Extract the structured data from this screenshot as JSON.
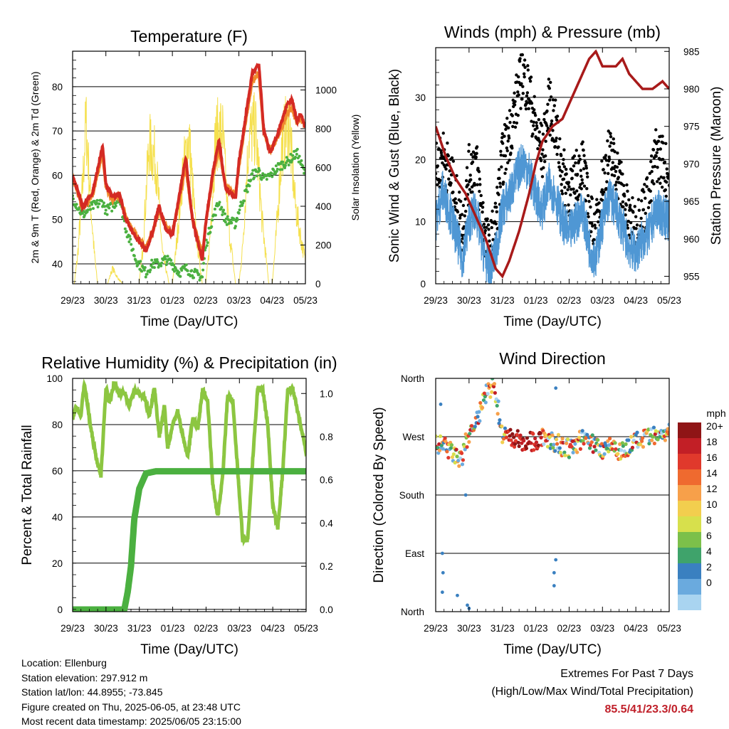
{
  "footer": {
    "location": "Location: Ellenburg",
    "elevation": "Station elevation: 297.912 m",
    "latlon": "Station lat/lon: 44.8955; -73.845",
    "created": "Figure created on Thu, 2025-06-05, at 23:48 UTC",
    "recent": "Most recent data timestamp: 2025/06/05 23:15:00"
  },
  "extremes": {
    "title": "Extremes For Past 7 Days",
    "subtitle": "(High/Low/Max Wind/Total Precipitation)",
    "values": "85.5/41/23.3/0.64"
  },
  "x_ticks": [
    "29/23",
    "30/23",
    "31/23",
    "01/23",
    "02/23",
    "03/23",
    "04/23",
    "05/23"
  ],
  "chart_data": [
    {
      "type": "line",
      "title": "Temperature (F)",
      "xlabel": "Time (Day/UTC)",
      "ylabel": "2m & 9m T (Red, Orange) & 2m Td (Green)",
      "y2label": "Solar Insolation (Yellow)",
      "ylim": [
        35.5,
        88
      ],
      "yticks": [
        40,
        50,
        60,
        70,
        80
      ],
      "y2lim": [
        0,
        1200
      ],
      "y2ticks": [
        0,
        200,
        400,
        600,
        800,
        1000
      ],
      "grid": "horizontal",
      "colors": {
        "t2m": "#d42a24",
        "t9m": "#f08a2c",
        "td2m": "#4bb040",
        "solar": "#f5e04e"
      },
      "series": [
        {
          "name": "2m T",
          "x": [
            0,
            0.3,
            0.6,
            0.9,
            1.0,
            1.2,
            1.4,
            1.6,
            1.9,
            2.2,
            2.4,
            2.6,
            2.8,
            3.0,
            3.2,
            3.4,
            3.6,
            3.9,
            4.0,
            4.2,
            4.4,
            4.6,
            4.9,
            5.0,
            5.2,
            5.4,
            5.6,
            5.75,
            5.95,
            6.2,
            6.45,
            6.6,
            6.75,
            6.85,
            7.0
          ],
          "y": [
            60,
            53,
            56,
            66.5,
            58,
            55,
            56,
            50,
            46,
            43,
            47,
            53,
            48,
            46.5,
            55,
            64,
            50,
            41,
            49,
            60,
            68,
            57,
            55,
            63,
            73,
            83,
            85,
            70,
            65,
            70,
            76,
            77,
            72,
            74,
            71
          ]
        },
        {
          "name": "9m T",
          "x": [
            0,
            0.3,
            0.6,
            0.9,
            1.0,
            1.2,
            1.4,
            1.6,
            1.9,
            2.2,
            2.4,
            2.6,
            2.8,
            3.0,
            3.2,
            3.4,
            3.6,
            3.9,
            4.0,
            4.2,
            4.4,
            4.6,
            4.9,
            5.0,
            5.2,
            5.4,
            5.6,
            5.75,
            5.95,
            6.2,
            6.45,
            6.6,
            6.75,
            6.85,
            7.0
          ],
          "y": [
            59.5,
            52.5,
            55.5,
            65,
            57.5,
            54.5,
            55.5,
            50.5,
            46.5,
            43.5,
            47,
            52,
            48.5,
            47,
            54,
            62,
            50.5,
            42,
            49,
            59,
            66,
            57.5,
            55.5,
            62,
            72,
            81,
            83,
            69.5,
            65.5,
            69,
            74,
            75,
            71.5,
            73,
            71
          ]
        },
        {
          "name": "2m Td",
          "x": [
            0,
            0.3,
            0.6,
            0.9,
            1.0,
            1.2,
            1.4,
            1.6,
            1.9,
            2.2,
            2.4,
            2.6,
            2.8,
            3.0,
            3.2,
            3.4,
            3.6,
            3.9,
            4.0,
            4.2,
            4.4,
            4.6,
            4.9,
            5.0,
            5.2,
            5.4,
            5.6,
            5.75,
            5.95,
            6.2,
            6.45,
            6.6,
            6.75,
            6.85,
            7.0
          ],
          "y": [
            55,
            51,
            53,
            54,
            52,
            53,
            55,
            48,
            41,
            38,
            40,
            40,
            41,
            40,
            38,
            39,
            38,
            37,
            44,
            50,
            54,
            50,
            49,
            52,
            56,
            60,
            61,
            59,
            60,
            62,
            63,
            64,
            65,
            63,
            60
          ]
        },
        {
          "name": "Solar",
          "x": [
            0,
            0.05,
            0.15,
            0.3,
            0.4,
            0.55,
            0.65,
            0.75,
            0.85,
            0.95,
            1.05,
            1.2,
            1.35,
            1.5,
            1.65,
            1.8,
            1.95,
            2.0,
            2.1,
            2.3,
            2.5,
            2.7,
            2.9,
            3.0,
            3.1,
            3.3,
            3.5,
            3.7,
            3.9,
            4.0,
            4.1,
            4.3,
            4.5,
            4.7,
            4.9,
            5.0,
            5.1,
            5.3,
            5.5,
            5.7,
            5.9,
            6.0,
            6.1,
            6.3,
            6.5,
            6.7,
            6.9,
            7.0
          ],
          "y": [
            0,
            0,
            180,
            620,
            1050,
            500,
            200,
            0,
            0,
            0,
            0,
            100,
            40,
            0,
            0,
            0,
            0,
            0,
            200,
            900,
            800,
            200,
            0,
            0,
            200,
            700,
            950,
            350,
            0,
            0,
            200,
            950,
            1000,
            350,
            0,
            0,
            200,
            950,
            1000,
            400,
            0,
            0,
            250,
            900,
            1050,
            500,
            250,
            150
          ]
        }
      ]
    },
    {
      "type": "line",
      "title": "Winds (mph) & Pressure (mb)",
      "xlabel": "Time (Day/UTC)",
      "ylabel": "Sonic Wind & Gust (Blue, Black)",
      "y2label": "Station Pressure (Maroon)",
      "ylim": [
        0,
        38
      ],
      "yticks": [
        0,
        10,
        20,
        30
      ],
      "y2lim": [
        954,
        985.5
      ],
      "y2ticks": [
        955,
        960,
        965,
        970,
        975,
        980,
        985
      ],
      "grid": "horizontal",
      "colors": {
        "wind": "#4f97d4",
        "gust": "#000000",
        "pressure": "#a81a1a"
      },
      "series": [
        {
          "name": "Sonic Wind",
          "x": [
            0,
            0.2,
            0.4,
            0.6,
            0.8,
            1.0,
            1.2,
            1.4,
            1.6,
            1.8,
            2.0,
            2.2,
            2.4,
            2.6,
            2.8,
            3.0,
            3.2,
            3.4,
            3.6,
            3.8,
            4.0,
            4.2,
            4.4,
            4.6,
            4.8,
            5.0,
            5.2,
            5.4,
            5.6,
            5.8,
            6.0,
            6.2,
            6.4,
            6.6,
            6.8,
            7.0
          ],
          "y": [
            10,
            15,
            12,
            8,
            4,
            10,
            12,
            6,
            2,
            5,
            12,
            14,
            17,
            20,
            18,
            14,
            12,
            16,
            14,
            10,
            8,
            10,
            12,
            6,
            4,
            10,
            14,
            12,
            9,
            6,
            5,
            7,
            8,
            12,
            11,
            10
          ]
        },
        {
          "name": "Gust",
          "x": [
            0,
            0.2,
            0.4,
            0.6,
            0.8,
            1.0,
            1.2,
            1.4,
            1.6,
            1.8,
            2.0,
            2.2,
            2.4,
            2.6,
            2.8,
            3.0,
            3.2,
            3.4,
            3.6,
            3.8,
            4.0,
            4.2,
            4.4,
            4.6,
            4.8,
            5.0,
            5.2,
            5.4,
            5.6,
            5.8,
            6.0,
            6.2,
            6.4,
            6.6,
            6.8,
            7.0
          ],
          "y": [
            17,
            20,
            17,
            13,
            8,
            17,
            19,
            10,
            4,
            9,
            19,
            23,
            28,
            33,
            30,
            24,
            20,
            28,
            24,
            17,
            14,
            16,
            19,
            10,
            7,
            16,
            20,
            18,
            14,
            9,
            8,
            11,
            13,
            20,
            19,
            16
          ]
        },
        {
          "name": "Pressure",
          "x": [
            0,
            0.3,
            0.6,
            0.9,
            1.2,
            1.5,
            1.8,
            2.0,
            2.2,
            2.5,
            2.8,
            3.0,
            3.2,
            3.5,
            3.8,
            4.0,
            4.2,
            4.4,
            4.6,
            4.8,
            5.0,
            5.2,
            5.4,
            5.6,
            5.8,
            6.0,
            6.2,
            6.5,
            6.8,
            7.0
          ],
          "y": [
            975,
            971,
            968,
            966,
            963,
            960,
            956,
            955,
            957,
            961,
            966,
            970,
            973,
            975,
            976,
            978,
            980,
            982,
            984,
            985,
            983,
            983,
            983,
            984,
            982,
            981,
            980,
            980,
            981,
            980
          ]
        }
      ]
    },
    {
      "type": "line",
      "title": "Relative Humidity (%) & Precipitation (in)",
      "xlabel": "Time (Day/UTC)",
      "ylabel": "Percent & Total Rainfall",
      "ylim": [
        -1,
        100
      ],
      "yticks": [
        0,
        20,
        40,
        60,
        80,
        100
      ],
      "y2lim": [
        -0.01,
        1.07
      ],
      "y2ticks": [
        0.0,
        0.2,
        0.4,
        0.6,
        0.8,
        1.0
      ],
      "grid": "horizontal",
      "colors": {
        "rh": "#8cc641",
        "precip": "#4bb040"
      },
      "series": [
        {
          "name": "RH",
          "x": [
            0,
            0.1,
            0.25,
            0.35,
            0.45,
            0.55,
            0.7,
            0.85,
            1.0,
            1.1,
            1.25,
            1.4,
            1.55,
            1.7,
            1.85,
            2.0,
            2.15,
            2.3,
            2.45,
            2.6,
            2.75,
            2.85,
            3.0,
            3.15,
            3.3,
            3.45,
            3.6,
            3.75,
            3.9,
            4.05,
            4.2,
            4.35,
            4.5,
            4.65,
            4.8,
            4.95,
            5.1,
            5.25,
            5.4,
            5.55,
            5.7,
            5.85,
            6.0,
            6.15,
            6.3,
            6.45,
            6.6,
            6.75,
            6.9,
            7.0
          ],
          "y": [
            82,
            88,
            84,
            98,
            88,
            78,
            66,
            58,
            96,
            90,
            98,
            93,
            94,
            88,
            95,
            93,
            92,
            84,
            96,
            75,
            88,
            70,
            80,
            86,
            75,
            66,
            83,
            78,
            95,
            90,
            55,
            40,
            58,
            93,
            90,
            60,
            30,
            30,
            65,
            96,
            95,
            80,
            45,
            35,
            60,
            95,
            96,
            85,
            75,
            68
          ]
        },
        {
          "name": "Precipitation",
          "x": [
            0,
            0.5,
            1.0,
            1.3,
            1.55,
            1.65,
            1.75,
            1.85,
            2.0,
            2.2,
            2.5,
            3.0,
            4.0,
            5.0,
            6.0,
            7.0
          ],
          "y": [
            0,
            0,
            0,
            0,
            0,
            0.08,
            0.2,
            0.42,
            0.56,
            0.63,
            0.64,
            0.64,
            0.64,
            0.64,
            0.64,
            0.64
          ]
        }
      ]
    },
    {
      "type": "scatter",
      "title": "Wind Direction",
      "xlabel": "Time (Day/UTC)",
      "ylabel": "Direction (Colored By Speed)",
      "yticks": [
        "North",
        "East",
        "South",
        "West",
        "North"
      ],
      "ylim": [
        0,
        360
      ],
      "grid": "horizontal",
      "colorbar": {
        "title": "mph",
        "labels": [
          "20+",
          "18",
          "16",
          "14",
          "12",
          "10",
          "8",
          "6",
          "4",
          "2",
          "0"
        ],
        "colors": [
          "#8f1516",
          "#c21f26",
          "#e0392c",
          "#ef6a2f",
          "#f7a04a",
          "#f2ce4e",
          "#d7e04c",
          "#7cc04a",
          "#3fa36b",
          "#3a80c0",
          "#6aaade",
          "#a9d4f0"
        ]
      },
      "series": [
        {
          "name": "Direction",
          "x": [
            0.0,
            0.2,
            0.4,
            0.6,
            0.8,
            0.9,
            1.0,
            1.15,
            1.3,
            1.45,
            1.6,
            1.75,
            2.0,
            2.25,
            2.5,
            2.75,
            3.0,
            3.2,
            3.4,
            3.6,
            3.8,
            4.0,
            4.2,
            4.4,
            4.6,
            4.8,
            5.0,
            5.2,
            5.4,
            5.6,
            5.8,
            6.0,
            6.2,
            6.4,
            6.6,
            6.8,
            7.0
          ],
          "y": [
            260,
            255,
            250,
            240,
            230,
            265,
            270,
            290,
            300,
            330,
            340,
            350,
            275,
            270,
            265,
            262,
            265,
            270,
            265,
            260,
            255,
            250,
            258,
            268,
            262,
            258,
            250,
            260,
            252,
            248,
            255,
            262,
            265,
            268,
            270,
            272,
            275
          ]
        }
      ]
    }
  ]
}
